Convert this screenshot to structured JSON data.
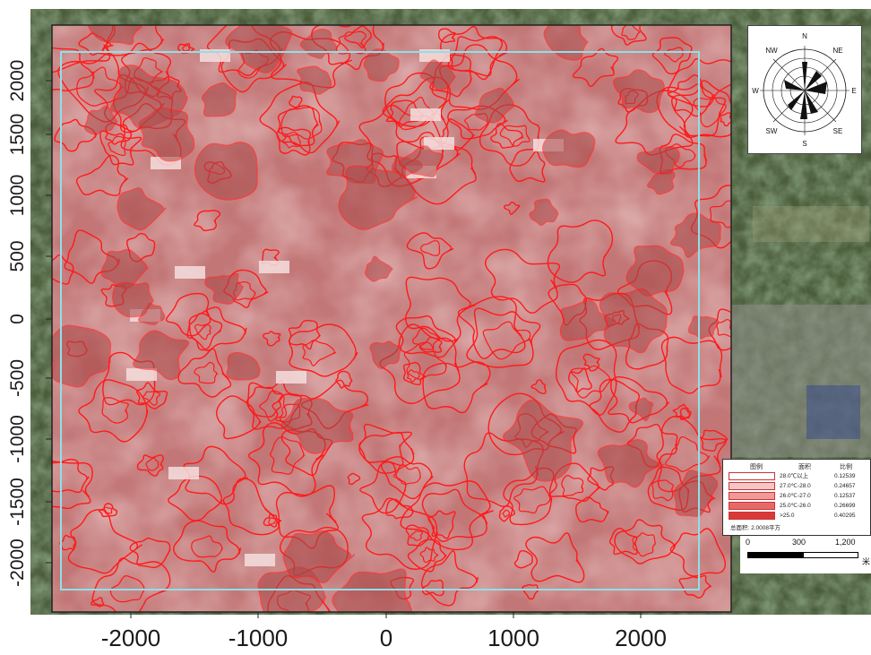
{
  "axes": {
    "x_ticks": [
      "-2000",
      "-1000",
      "0",
      "1000",
      "2000"
    ],
    "y_ticks": [
      "2000",
      "1500",
      "1000",
      "500",
      "0",
      "-500",
      "-1000",
      "-1500",
      "-2000"
    ]
  },
  "compass": {
    "directions": [
      "N",
      "NE",
      "E",
      "SE",
      "S",
      "SW",
      "W",
      "NW"
    ]
  },
  "legend": {
    "headers": [
      "图例",
      "面积",
      "比例"
    ],
    "rows": [
      {
        "range": "28.0℃以上",
        "area": "0.12539",
        "color": "#ffffff"
      },
      {
        "range": "27.0℃-28.0",
        "area": "0.24657",
        "color": "#f5c6c6"
      },
      {
        "range": "26.0℃-27.0",
        "area": "0.12537",
        "color": "#ee9a9a"
      },
      {
        "range": "25.0℃-26.0",
        "area": "0.26699",
        "color": "#e46a6a"
      },
      {
        "range": ">25.0",
        "area": "0.40295",
        "color": "#d83a3a"
      }
    ],
    "footer": "总面积: 2.0008平方"
  },
  "scalebar": {
    "labels": [
      "0",
      "300",
      "1,200"
    ],
    "unit": "米"
  },
  "colors": {
    "contour": "#ff1a1a",
    "overlay": "#c85a5a",
    "frame": "#8fe0e8"
  }
}
